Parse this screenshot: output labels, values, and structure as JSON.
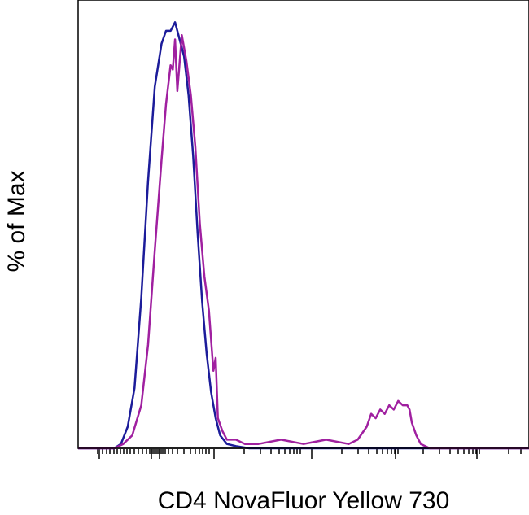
{
  "chart_data": {
    "type": "line",
    "xlabel": "CD4 NovaFluor Yellow 730",
    "ylabel": "% of Max",
    "xlim": [
      0,
      100
    ],
    "ylim": [
      0,
      100
    ],
    "grid": false,
    "legend": "none",
    "tick_labels": "none",
    "series": [
      {
        "color": "#1c1c9a",
        "x": [
          0,
          8,
          9.5,
          11,
          12.5,
          14,
          15.5,
          17,
          18.5,
          19.5,
          20.5,
          21.5,
          22.5,
          23.5,
          24.5,
          25.5,
          26.5,
          27.5,
          28.5,
          29.5,
          30.5,
          31.5,
          33,
          35,
          38,
          45,
          60,
          80,
          100
        ],
        "y": [
          0,
          0,
          1,
          5,
          14,
          35,
          62,
          84,
          94,
          97,
          97,
          99,
          95,
          91,
          82,
          68,
          50,
          34,
          22,
          13,
          7,
          3,
          1,
          0.5,
          0,
          0,
          0,
          0,
          0
        ]
      },
      {
        "color": "#a020a0",
        "x": [
          0,
          8,
          10,
          12,
          14,
          15.5,
          17,
          18.5,
          19.5,
          20.5,
          21,
          21.5,
          22,
          23,
          24,
          25,
          26,
          27,
          28,
          29,
          30,
          30.5,
          31,
          32,
          33,
          35,
          37,
          40,
          45,
          50,
          55,
          60,
          62,
          64,
          65,
          66,
          67,
          68,
          69,
          70,
          71,
          72,
          73,
          73.5,
          74,
          75,
          76,
          78,
          80,
          100
        ],
        "y": [
          0,
          0,
          1,
          3,
          10,
          24,
          46,
          67,
          80,
          89,
          88,
          95,
          83,
          96,
          90,
          82,
          70,
          52,
          40,
          32,
          18,
          21,
          7,
          4,
          2,
          2,
          1,
          1,
          2,
          1,
          2,
          1,
          2,
          5,
          8,
          7,
          9,
          8,
          10,
          9,
          11,
          10,
          10,
          9,
          6,
          3,
          1,
          0,
          0,
          0
        ]
      }
    ]
  }
}
